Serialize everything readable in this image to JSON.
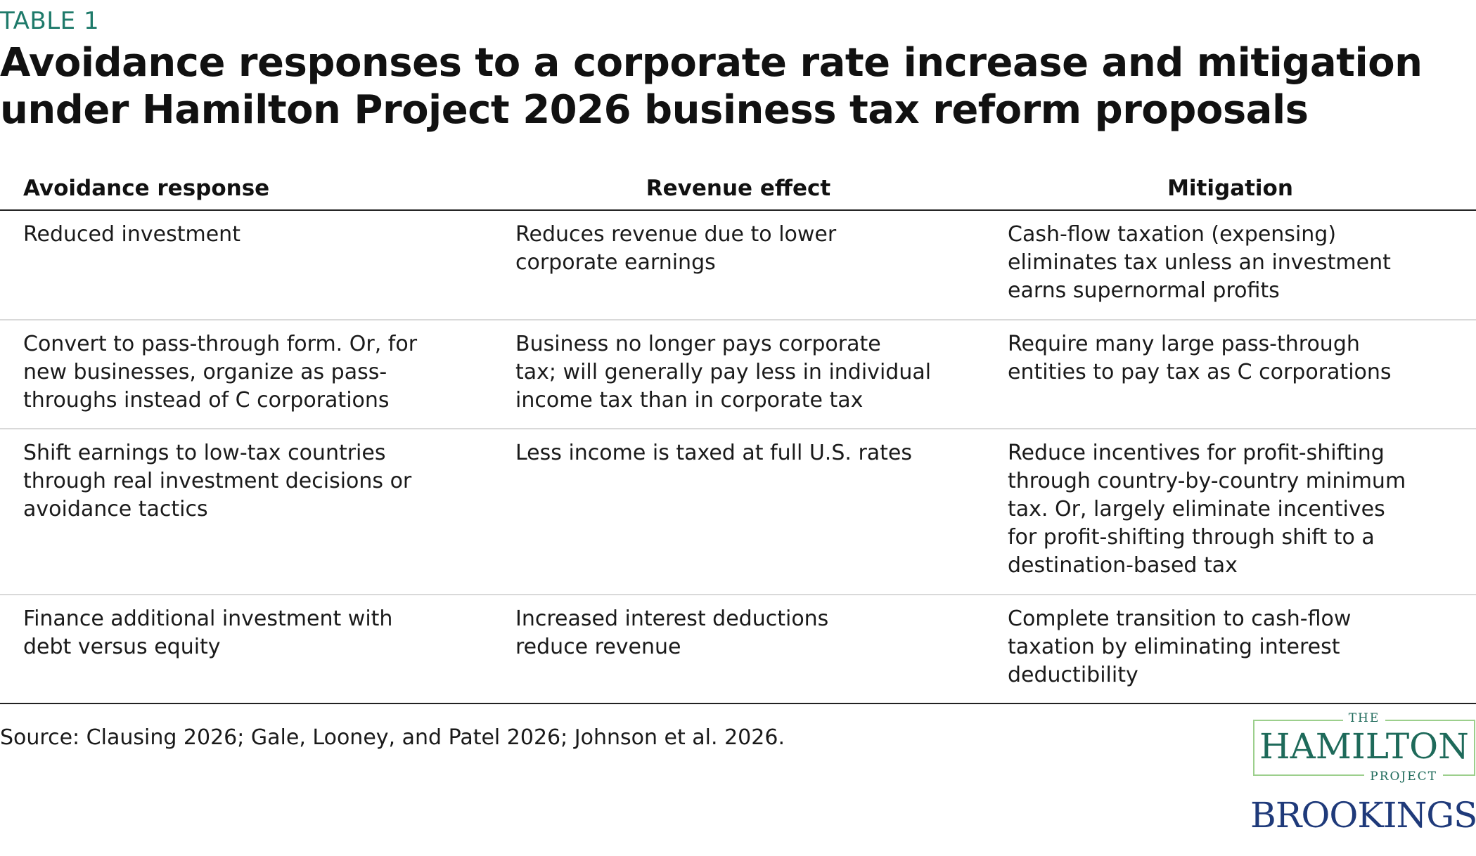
{
  "header": {
    "label": "TABLE 1",
    "title": "Avoidance responses to a corporate rate increase and mitigation under Hamilton Project 2026 business tax reform proposals"
  },
  "table": {
    "columns": [
      "Avoidance response",
      "Revenue effect",
      "Mitigation"
    ],
    "rows": [
      {
        "response": "Reduced investment",
        "effect": "Reduces revenue due to lower\ncorporate earnings",
        "mitigation": "Cash-flow taxation (expensing)\neliminates tax unless an investment\nearns supernormal profits"
      },
      {
        "response": "Convert to pass-through form. Or, for\nnew businesses, organize as pass-\nthroughs instead of C corporations",
        "effect": "Business no longer pays corporate\ntax; will generally pay less in individual\nincome tax than in corporate tax",
        "mitigation": "Require many large pass-through\nentities to pay tax as C corporations"
      },
      {
        "response": "Shift earnings to low-tax countries\nthrough real investment decisions or\navoidance tactics",
        "effect": "Less income is taxed at full U.S. rates",
        "mitigation": "Reduce incentives for profit-shifting\nthrough country-by-country minimum\ntax. Or, largely eliminate incentives\nfor profit-shifting through shift to a\ndestination-based tax"
      },
      {
        "response": "Finance additional investment with\ndebt versus equity",
        "effect": "Increased interest deductions\nreduce revenue",
        "mitigation": "Complete transition to cash-flow\ntaxation by eliminating interest\ndeductibility"
      }
    ]
  },
  "footer": {
    "source": "Source: Clausing 2026; Gale, Looney, and Patel 2026; Johnson et al. 2026."
  },
  "logos": {
    "hamilton_the": "THE",
    "hamilton_name": "HAMILTON",
    "hamilton_project": "PROJECT",
    "brookings": "BROOKINGS"
  },
  "colors": {
    "label": "#1e7a6a",
    "hamilton_green": "#1e6a5a",
    "hamilton_border": "#9ccf8c",
    "brookings_blue": "#1f3a7a"
  }
}
